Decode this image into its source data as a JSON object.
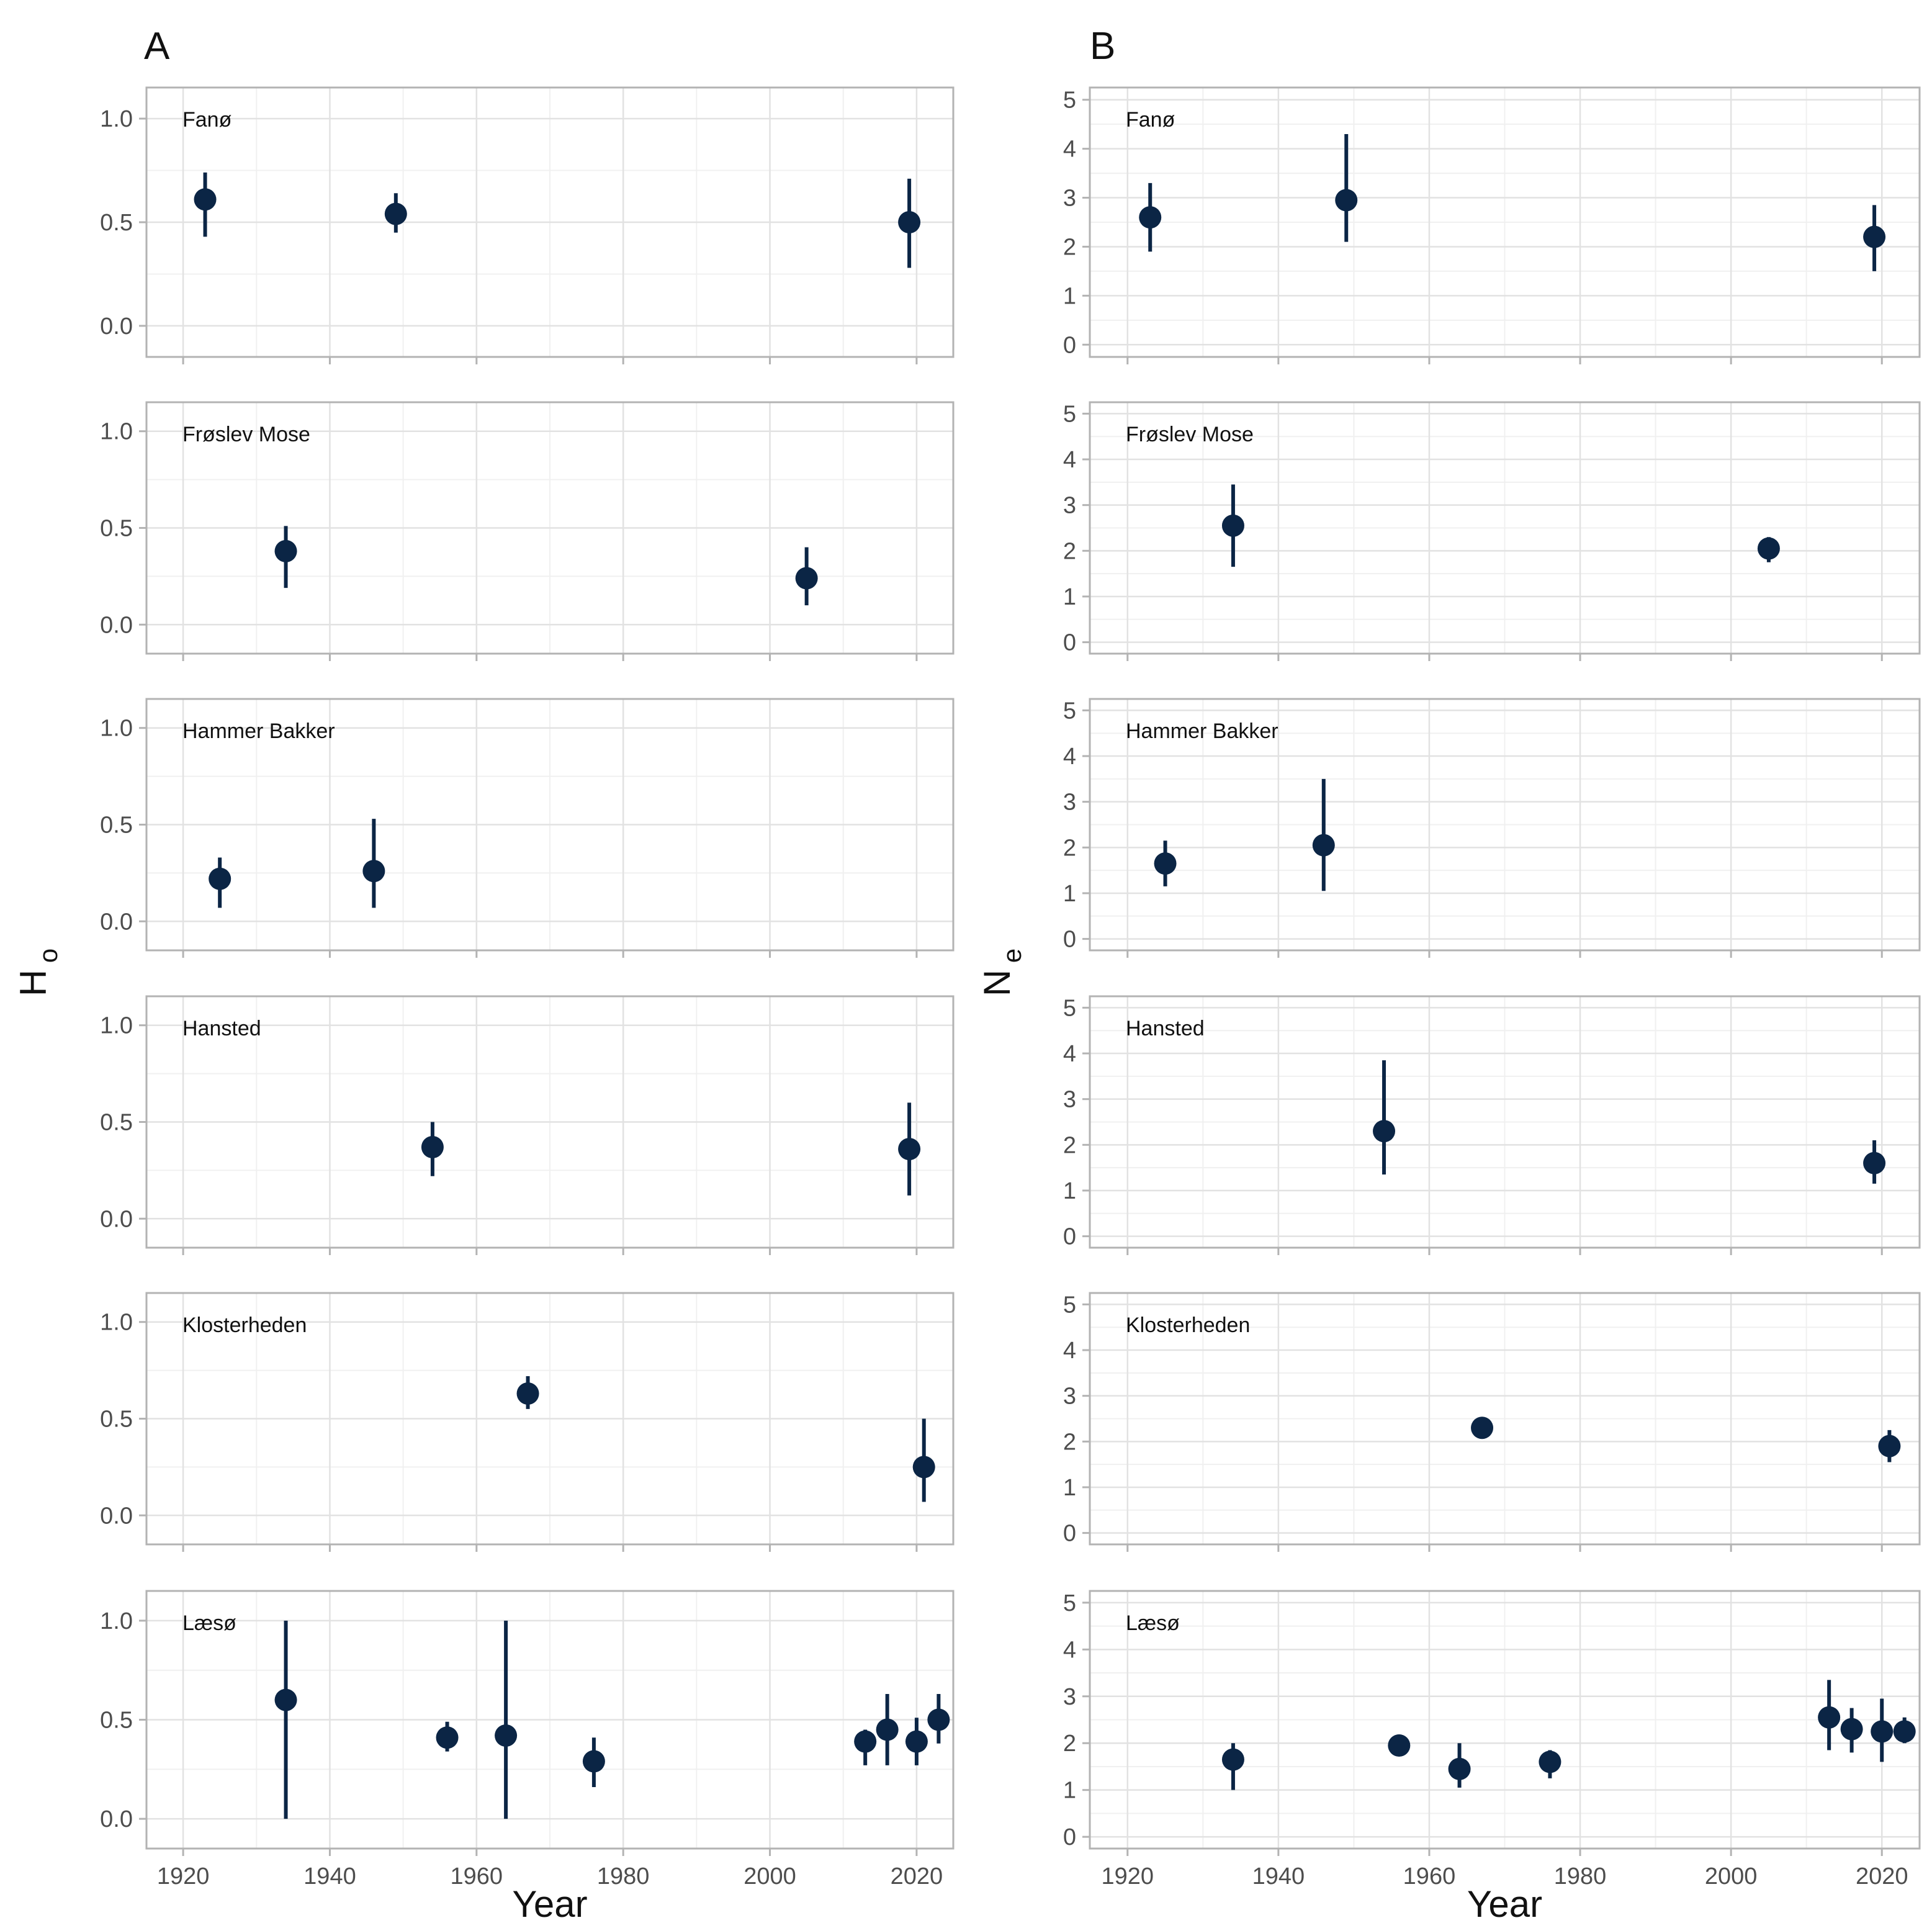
{
  "chart_data": {
    "type": "scatter",
    "style": {
      "point_color": "#0b2545",
      "panel_border": "#b3b3b3",
      "grid_major": "#e2e2e2",
      "grid_minor": "#f0f0f0",
      "text_color": "#4d4d4d"
    },
    "columns": [
      {
        "label": "A",
        "ylabel_main": "H",
        "ylabel_sub": "o",
        "xlabel": "Year",
        "xlim": [
          1915,
          2025
        ],
        "x_ticks": [
          1920,
          1940,
          1960,
          1980,
          2000,
          2020
        ],
        "ylim": [
          -0.15,
          1.15
        ],
        "y_ticks": [
          0.0,
          0.5,
          1.0
        ],
        "y_tick_labels": [
          "0.0",
          "0.5",
          "1.0"
        ],
        "panels": [
          {
            "site": "Fanø",
            "points": [
              {
                "x": 1923,
                "y": 0.61,
                "lo": 0.43,
                "hi": 0.74
              },
              {
                "x": 1949,
                "y": 0.54,
                "lo": 0.45,
                "hi": 0.64
              },
              {
                "x": 2019,
                "y": 0.5,
                "lo": 0.28,
                "hi": 0.71
              }
            ]
          },
          {
            "site": "Frøslev Mose",
            "points": [
              {
                "x": 1934,
                "y": 0.38,
                "lo": 0.19,
                "hi": 0.51
              },
              {
                "x": 2005,
                "y": 0.24,
                "lo": 0.1,
                "hi": 0.4
              }
            ]
          },
          {
            "site": "Hammer Bakker",
            "points": [
              {
                "x": 1925,
                "y": 0.22,
                "lo": 0.07,
                "hi": 0.33
              },
              {
                "x": 1946,
                "y": 0.26,
                "lo": 0.07,
                "hi": 0.53
              }
            ]
          },
          {
            "site": "Hansted",
            "points": [
              {
                "x": 1954,
                "y": 0.37,
                "lo": 0.22,
                "hi": 0.5
              },
              {
                "x": 2019,
                "y": 0.36,
                "lo": 0.12,
                "hi": 0.6
              }
            ]
          },
          {
            "site": "Klosterheden",
            "points": [
              {
                "x": 1967,
                "y": 0.63,
                "lo": 0.55,
                "hi": 0.72
              },
              {
                "x": 2021,
                "y": 0.25,
                "lo": 0.07,
                "hi": 0.5
              }
            ]
          },
          {
            "site": "Læsø",
            "points": [
              {
                "x": 1934,
                "y": 0.6,
                "lo": 0.0,
                "hi": 1.0
              },
              {
                "x": 1956,
                "y": 0.41,
                "lo": 0.34,
                "hi": 0.49
              },
              {
                "x": 1964,
                "y": 0.42,
                "lo": 0.0,
                "hi": 1.0
              },
              {
                "x": 1976,
                "y": 0.29,
                "lo": 0.16,
                "hi": 0.41
              },
              {
                "x": 2013,
                "y": 0.39,
                "lo": 0.27,
                "hi": 0.45
              },
              {
                "x": 2016,
                "y": 0.45,
                "lo": 0.27,
                "hi": 0.63
              },
              {
                "x": 2020,
                "y": 0.39,
                "lo": 0.27,
                "hi": 0.51
              },
              {
                "x": 2023,
                "y": 0.5,
                "lo": 0.38,
                "hi": 0.63
              }
            ]
          }
        ]
      },
      {
        "label": "B",
        "ylabel_main": "N",
        "ylabel_sub": "e",
        "xlabel": "Year",
        "xlim": [
          1915,
          2025
        ],
        "x_ticks": [
          1920,
          1940,
          1960,
          1980,
          2000,
          2020
        ],
        "ylim": [
          -0.25,
          5.25
        ],
        "y_ticks": [
          0,
          1,
          2,
          3,
          4,
          5
        ],
        "y_tick_labels": [
          "0",
          "1",
          "2",
          "3",
          "4",
          "5"
        ],
        "panels": [
          {
            "site": "Fanø",
            "points": [
              {
                "x": 1923,
                "y": 2.6,
                "lo": 1.9,
                "hi": 3.3
              },
              {
                "x": 1949,
                "y": 2.95,
                "lo": 2.1,
                "hi": 4.3
              },
              {
                "x": 2019,
                "y": 2.2,
                "lo": 1.5,
                "hi": 2.85
              }
            ]
          },
          {
            "site": "Frøslev Mose",
            "points": [
              {
                "x": 1934,
                "y": 2.55,
                "lo": 1.65,
                "hi": 3.45
              },
              {
                "x": 2005,
                "y": 2.05,
                "lo": 1.75,
                "hi": 2.3
              }
            ]
          },
          {
            "site": "Hammer Bakker",
            "points": [
              {
                "x": 1925,
                "y": 1.65,
                "lo": 1.15,
                "hi": 2.15
              },
              {
                "x": 1946,
                "y": 2.05,
                "lo": 1.05,
                "hi": 3.5
              }
            ]
          },
          {
            "site": "Hansted",
            "points": [
              {
                "x": 1954,
                "y": 2.3,
                "lo": 1.35,
                "hi": 3.85
              },
              {
                "x": 2019,
                "y": 1.6,
                "lo": 1.15,
                "hi": 2.1
              }
            ]
          },
          {
            "site": "Klosterheden",
            "points": [
              {
                "x": 1967,
                "y": 2.3,
                "lo": 2.1,
                "hi": 2.45
              },
              {
                "x": 2021,
                "y": 1.9,
                "lo": 1.55,
                "hi": 2.25
              }
            ]
          },
          {
            "site": "Læsø",
            "points": [
              {
                "x": 1934,
                "y": 1.65,
                "lo": 1.0,
                "hi": 2.0
              },
              {
                "x": 1956,
                "y": 1.95,
                "lo": 1.8,
                "hi": 2.05
              },
              {
                "x": 1964,
                "y": 1.45,
                "lo": 1.05,
                "hi": 2.0
              },
              {
                "x": 1976,
                "y": 1.6,
                "lo": 1.25,
                "hi": 1.85
              },
              {
                "x": 2013,
                "y": 2.55,
                "lo": 1.85,
                "hi": 3.35
              },
              {
                "x": 2016,
                "y": 2.3,
                "lo": 1.8,
                "hi": 2.75
              },
              {
                "x": 2020,
                "y": 2.25,
                "lo": 1.6,
                "hi": 2.95
              },
              {
                "x": 2023,
                "y": 2.25,
                "lo": 2.0,
                "hi": 2.55
              }
            ]
          }
        ]
      }
    ]
  }
}
